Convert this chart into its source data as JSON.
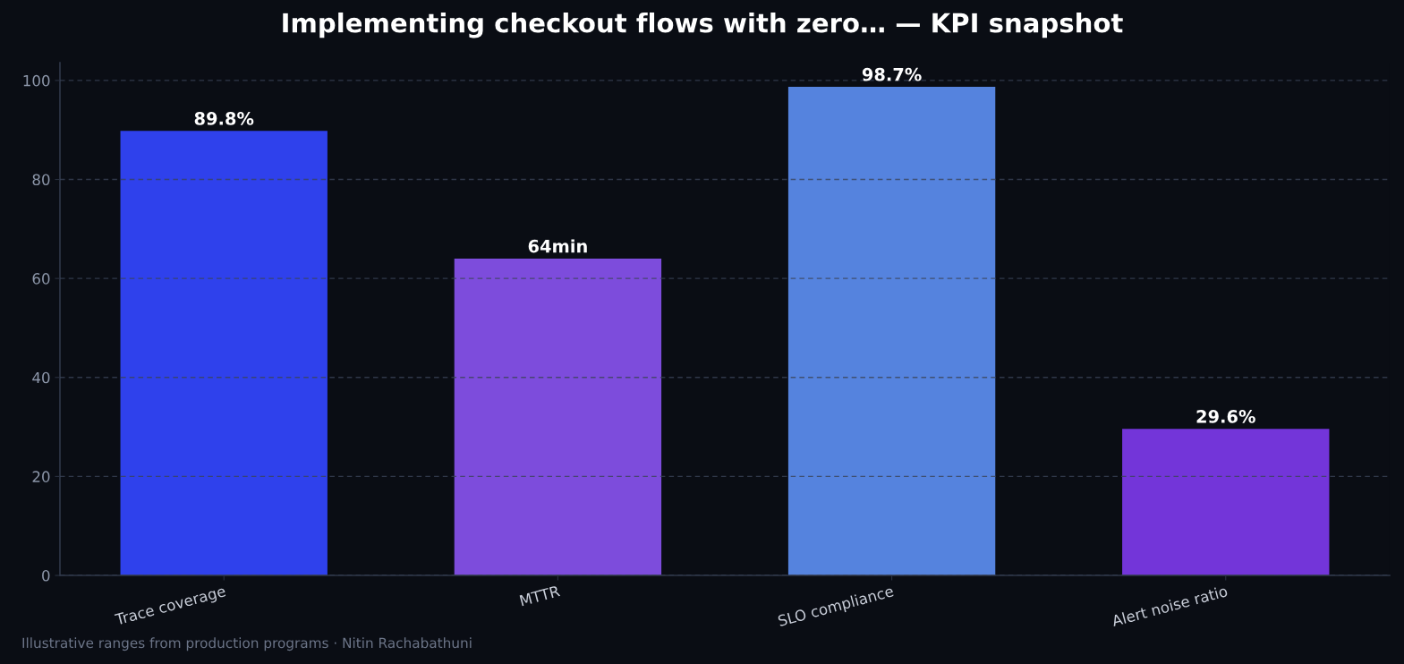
{
  "chart_data": {
    "type": "bar",
    "title": "Implementing checkout flows with zero… — KPI snapshot",
    "categories": [
      "Trace coverage",
      "MTTR",
      "SLO compliance",
      "Alert noise ratio"
    ],
    "values": [
      89.8,
      64,
      98.7,
      29.6
    ],
    "colors": [
      "#2f41ec",
      "#7d4cdc",
      "#5583de",
      "#7335d9"
    ],
    "value_labels": [
      "89.8%",
      "64min",
      "98.7%",
      "29.6%"
    ],
    "ylim": [
      0,
      103.6
    ],
    "yticks": [
      0,
      20,
      40,
      60,
      80,
      100
    ],
    "grid": "y",
    "annotations": [
      "Illustrative ranges from production programs · Nitin Rachabathuni"
    ]
  }
}
